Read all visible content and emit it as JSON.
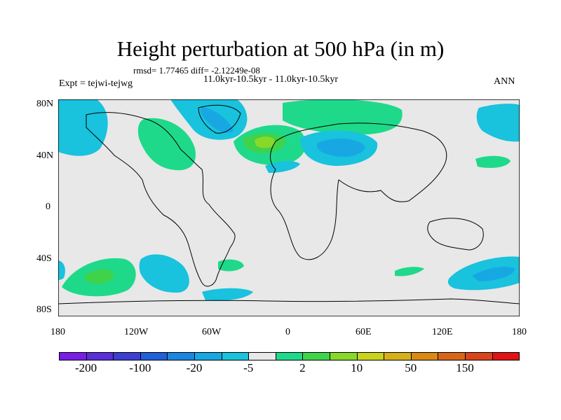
{
  "title": "Height perturbation at 500 hPa (in m)",
  "stats": "rmsd= 1.77465 diff= -2.12249e-08",
  "period": "11.0kyr-10.5kyr - 11.0kyr-10.5kyr",
  "expt": "Expt = tejwi-tejwg",
  "season": "ANN",
  "lat_ticks": [
    "80N",
    "40N",
    "0",
    "40S",
    "80S"
  ],
  "lon_ticks": [
    "180",
    "120W",
    "60W",
    "0",
    "60E",
    "120E",
    "180"
  ],
  "colorbar": {
    "labels": [
      "-200",
      "-100",
      "-20",
      "-5",
      "2",
      "10",
      "50",
      "150"
    ],
    "colors": [
      "#7a1ee6",
      "#5a2fd8",
      "#3c3fd0",
      "#2060d8",
      "#1a86e0",
      "#17a8e3",
      "#19c2dd",
      "#e8e8e8",
      "#1fd98a",
      "#3fd24b",
      "#88d82a",
      "#c9d21c",
      "#d6b018",
      "#d88a14",
      "#d8661a",
      "#d8451c",
      "#e01414"
    ]
  },
  "map": {
    "background": "#e8e8e8",
    "blue": "#19c2dd",
    "blue_dark": "#17a8e3",
    "green": "#1fd98a",
    "green_mid": "#3fd24b",
    "lime": "#88d82a"
  }
}
